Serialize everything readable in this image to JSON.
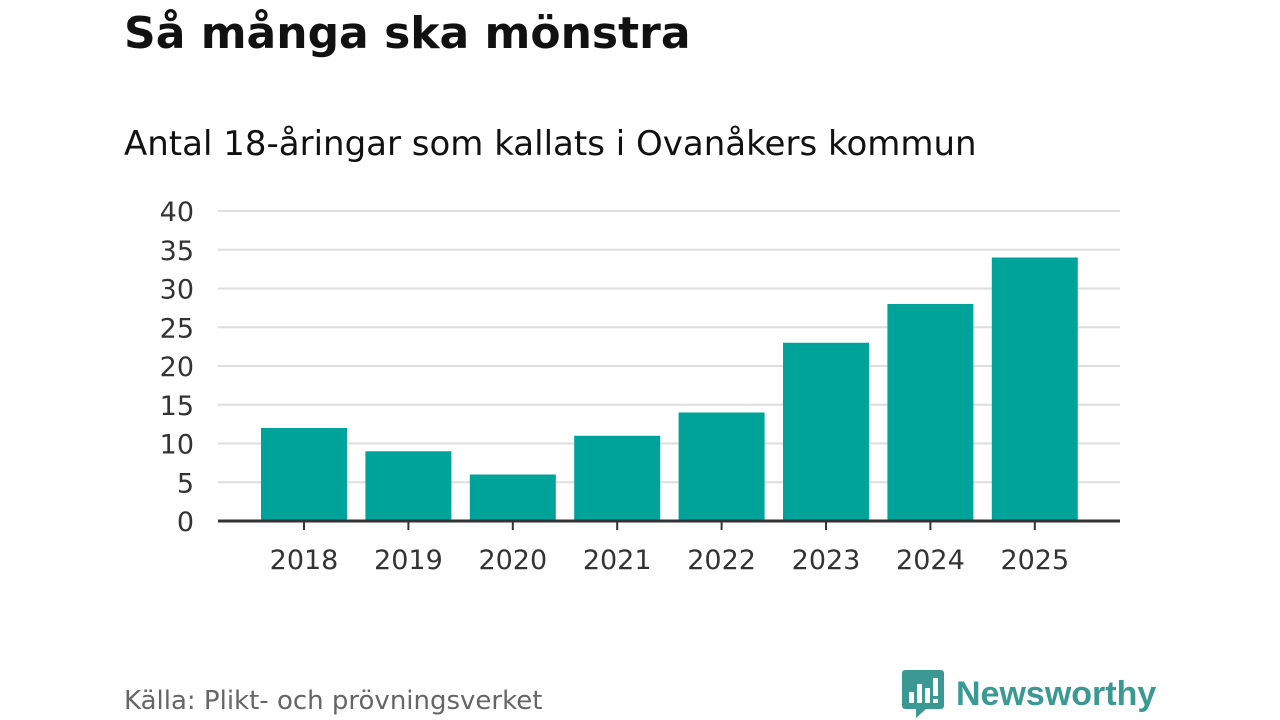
{
  "title": "Så många ska mönstra",
  "subtitle": "Antal 18-åringar som kallats i Ovanåkers kommun",
  "source": "Källa: Plikt- och prövningsverket",
  "brand": {
    "name": "Newsworthy",
    "icon": "newsworthy-logo-icon",
    "color": "#3a9a93"
  },
  "colors": {
    "bar": "#00a399",
    "grid": "#dddddd",
    "axis": "#333333"
  },
  "chart_data": {
    "type": "bar",
    "title": "Så många ska mönstra",
    "subtitle": "Antal 18-åringar som kallats i Ovanåkers kommun",
    "xlabel": "",
    "ylabel": "",
    "categories": [
      "2018",
      "2019",
      "2020",
      "2021",
      "2022",
      "2023",
      "2024",
      "2025"
    ],
    "values": [
      12,
      9,
      6,
      11,
      14,
      23,
      28,
      34
    ],
    "ylim": [
      0,
      40
    ],
    "yticks": [
      "0",
      "5",
      "10",
      "15",
      "20",
      "25",
      "30",
      "35",
      "40"
    ],
    "grid": true,
    "legend": "none"
  }
}
